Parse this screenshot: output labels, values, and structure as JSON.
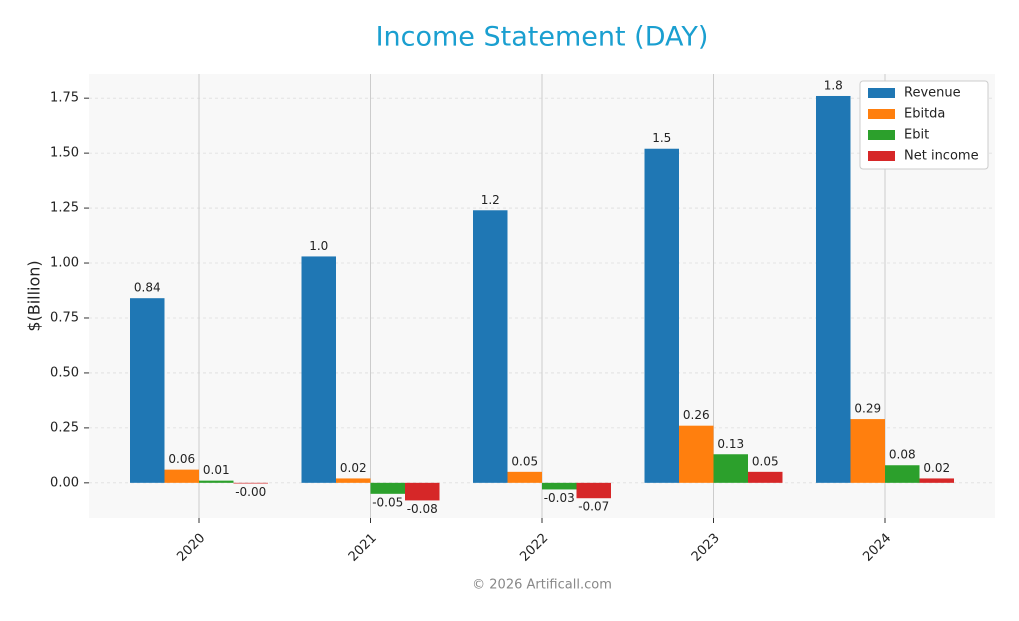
{
  "chart_data": {
    "type": "bar",
    "title": "Income Statement (DAY)",
    "ylabel": "$(Billion)",
    "footer": "© 2026 Artificall.com",
    "categories": [
      "2020",
      "2021",
      "2022",
      "2023",
      "2024"
    ],
    "series": [
      {
        "name": "Revenue",
        "color": "#1f77b4",
        "values": [
          0.84,
          1.03,
          1.24,
          1.52,
          1.76
        ],
        "value_labels": [
          "0.84",
          "1.0",
          "1.2",
          "1.5",
          "1.8"
        ]
      },
      {
        "name": "Ebitda",
        "color": "#ff7f0e",
        "values": [
          0.06,
          0.02,
          0.05,
          0.26,
          0.29
        ],
        "value_labels": [
          "0.06",
          "0.02",
          "0.05",
          "0.26",
          "0.29"
        ]
      },
      {
        "name": "Ebit",
        "color": "#2ca02c",
        "values": [
          0.01,
          -0.05,
          -0.03,
          0.13,
          0.08
        ],
        "value_labels": [
          "0.01",
          "-0.05",
          "-0.03",
          "0.13",
          "0.08"
        ]
      },
      {
        "name": "Net income",
        "color": "#d62728",
        "values": [
          -0.003,
          -0.08,
          -0.07,
          0.05,
          0.02
        ],
        "value_labels": [
          "-0.00",
          "-0.08",
          "-0.07",
          "0.05",
          "0.02"
        ]
      }
    ],
    "ylim": [
      -0.16,
      1.86
    ],
    "yticks": [
      {
        "value": 0,
        "label": "0.00"
      },
      {
        "value": 0.25,
        "label": "0.25"
      },
      {
        "value": 0.5,
        "label": "0.50"
      },
      {
        "value": 0.75,
        "label": "0.75"
      },
      {
        "value": 1,
        "label": "1.00"
      },
      {
        "value": 1.25,
        "label": "1.25"
      },
      {
        "value": 1.5,
        "label": "1.50"
      },
      {
        "value": 1.75,
        "label": "1.75"
      }
    ],
    "grid": true,
    "legend": "upper right"
  }
}
